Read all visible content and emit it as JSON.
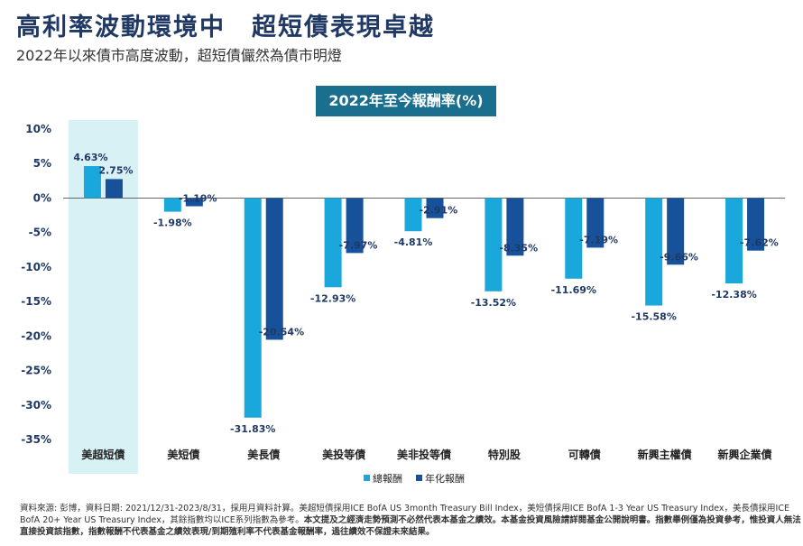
{
  "header": {
    "title": "高利率波動環境中　超短債表現卓越",
    "subtitle": "2022年以來債市高度波動，超短債儼然為債市明燈"
  },
  "chart_data": {
    "type": "bar",
    "title": "2022年至今報酬率(%)",
    "categories": [
      "美超短債",
      "美短債",
      "美長債",
      "美投等債",
      "美非投等債",
      "特別股",
      "可轉債",
      "新興主權債",
      "新興企業債"
    ],
    "highlight_category": "美超短債",
    "series": [
      {
        "name": "總報酬",
        "values": [
          4.63,
          -1.98,
          -31.83,
          -12.93,
          -4.81,
          -13.52,
          -11.69,
          -15.58,
          -12.38
        ],
        "labels": [
          "4.63%",
          "-1.98%",
          "-31.83%",
          "-12.93%",
          "-4.81%",
          "-13.52%",
          "-11.69%",
          "-15.58%",
          "-12.38%"
        ]
      },
      {
        "name": "年化報酬",
        "values": [
          2.75,
          -1.19,
          -20.54,
          -7.97,
          -2.91,
          -8.35,
          -7.19,
          -9.66,
          -7.62
        ],
        "labels": [
          "2.75%",
          "-1.19%",
          "-20.54%",
          "-7.97%",
          "-2.91%",
          "-8.35%",
          "-7.19%",
          "-9.66%",
          "-7.62%"
        ]
      }
    ],
    "ylim": [
      -35,
      10
    ],
    "yticks": [
      10,
      5,
      0,
      -5,
      -10,
      -15,
      -20,
      -25,
      -30,
      -35
    ],
    "ytick_labels": [
      "10%",
      "5%",
      "0%",
      "-5%",
      "-10%",
      "-15%",
      "-20%",
      "-25%",
      "-30%",
      "-35%"
    ],
    "legend_position": "bottom-center",
    "colors": {
      "series1": "#1aa7dc",
      "series2": "#17519a",
      "highlight": "#d8f1f5",
      "axis_text": "#1f3864"
    }
  },
  "footer": {
    "text_normal": "資料來源: 彭博，資料日期: 2021/12/31-2023/8/31，採用月資料計算。美超短債採用ICE BofA US 3month Treasury Bill Index，美短債採用ICE BofA 1-3 Year US Treasury Index，美長債採用ICE BofA 20+ Year US Treasury Index，其餘指數均以ICE系列指數為參考。",
    "text_bold": "本文提及之經濟走勢預測不必然代表本基金之績效。本基金投資風險請詳閱基金公開說明書。指數舉例僅為投資參考，惟投資人無法直接投資該指數，指數報酬不代表基金之績效表現/到期殖利率不代表基金報酬率，過往績效不保證未來結果。"
  }
}
